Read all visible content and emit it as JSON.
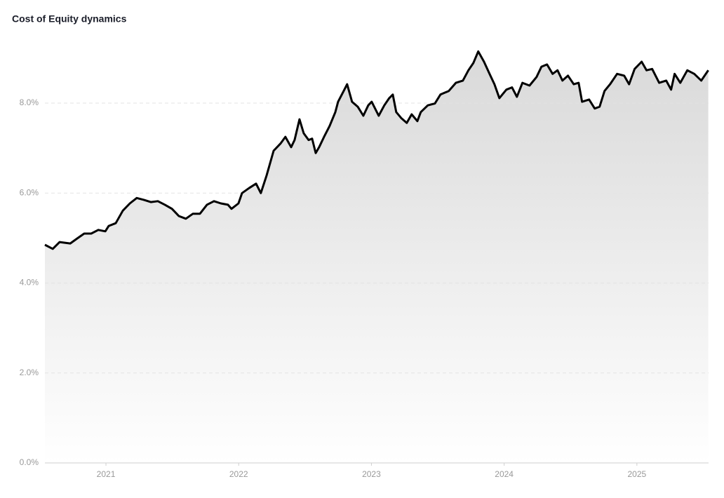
{
  "chart_data": {
    "type": "area",
    "title": "Cost of Equity dynamics",
    "x": [
      2020.54,
      2020.599,
      2020.651,
      2020.731,
      2020.783,
      2020.836,
      2020.889,
      2020.942,
      2020.995,
      2021.021,
      2021.074,
      2021.127,
      2021.18,
      2021.232,
      2021.285,
      2021.338,
      2021.391,
      2021.444,
      2021.497,
      2021.549,
      2021.602,
      2021.655,
      2021.708,
      2021.761,
      2021.814,
      2021.866,
      2021.919,
      2021.946,
      2021.998,
      2022.025,
      2022.078,
      2022.131,
      2022.167,
      2022.21,
      2022.263,
      2022.315,
      2022.352,
      2022.395,
      2022.421,
      2022.458,
      2022.49,
      2022.527,
      2022.553,
      2022.58,
      2022.606,
      2022.643,
      2022.685,
      2022.728,
      2022.749,
      2022.791,
      2022.817,
      2022.854,
      2022.897,
      2022.939,
      2022.976,
      2023.002,
      2023.055,
      2023.097,
      2023.134,
      2023.161,
      2023.187,
      2023.224,
      2023.266,
      2023.303,
      2023.346,
      2023.372,
      2023.425,
      2023.478,
      2023.52,
      2023.583,
      2023.636,
      2023.689,
      2023.731,
      2023.768,
      2023.805,
      2023.848,
      2023.89,
      2023.927,
      2023.964,
      2024.017,
      2024.059,
      2024.096,
      2024.138,
      2024.191,
      2024.244,
      2024.281,
      2024.323,
      2024.365,
      2024.402,
      2024.439,
      2024.481,
      2024.524,
      2024.561,
      2024.587,
      2024.64,
      2024.682,
      2024.719,
      2024.756,
      2024.798,
      2024.851,
      2024.904,
      2024.941,
      2024.983,
      2025.036,
      2025.073,
      2025.115,
      2025.168,
      2025.221,
      2025.258,
      2025.284,
      2025.327,
      2025.38,
      2025.432,
      2025.485,
      2025.538
    ],
    "values": [
      4.85,
      4.76,
      4.91,
      4.88,
      4.99,
      5.1,
      5.1,
      5.18,
      5.15,
      5.27,
      5.33,
      5.61,
      5.77,
      5.89,
      5.85,
      5.8,
      5.82,
      5.74,
      5.65,
      5.49,
      5.43,
      5.54,
      5.54,
      5.74,
      5.82,
      5.77,
      5.74,
      5.65,
      5.77,
      6.0,
      6.11,
      6.21,
      6.0,
      6.39,
      6.94,
      7.1,
      7.25,
      7.02,
      7.18,
      7.64,
      7.33,
      7.18,
      7.21,
      6.89,
      7.02,
      7.25,
      7.49,
      7.8,
      8.03,
      8.27,
      8.42,
      8.03,
      7.92,
      7.72,
      7.95,
      8.03,
      7.72,
      7.95,
      8.11,
      8.19,
      7.8,
      7.67,
      7.56,
      7.75,
      7.6,
      7.8,
      7.95,
      7.99,
      8.19,
      8.27,
      8.45,
      8.5,
      8.73,
      8.89,
      9.15,
      8.92,
      8.65,
      8.42,
      8.11,
      8.3,
      8.35,
      8.14,
      8.45,
      8.39,
      8.58,
      8.81,
      8.86,
      8.65,
      8.73,
      8.5,
      8.61,
      8.42,
      8.45,
      8.03,
      8.08,
      7.88,
      7.92,
      8.27,
      8.42,
      8.65,
      8.61,
      8.42,
      8.76,
      8.92,
      8.73,
      8.76,
      8.45,
      8.5,
      8.3,
      8.65,
      8.45,
      8.73,
      8.65,
      8.5,
      8.73
    ],
    "color": "#000000",
    "xlim": [
      2020.54,
      2025.54
    ],
    "xticks": [
      2021,
      2022,
      2023,
      2024,
      2025
    ],
    "ylim": [
      0,
      9.5
    ],
    "yticks": [
      {
        "value": 0,
        "label": "0.0%"
      },
      {
        "value": 2,
        "label": "2.0%"
      },
      {
        "value": 4,
        "label": "4.0%"
      },
      {
        "value": 6,
        "label": "6.0%"
      },
      {
        "value": 8,
        "label": "8.0%"
      }
    ],
    "grid": true
  }
}
